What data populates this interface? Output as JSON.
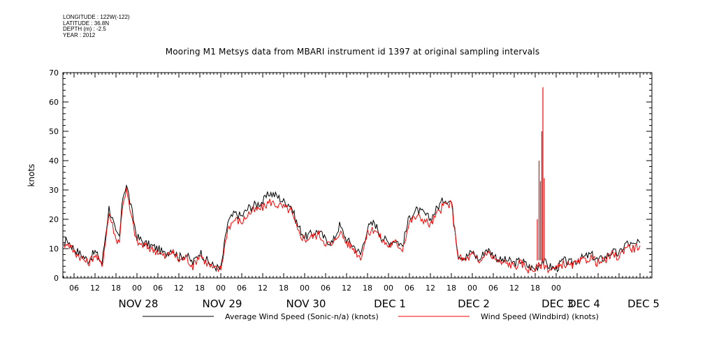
{
  "meta": {
    "longitude": "LONGITUDE : 122W(-122)",
    "latitude": "LATITUDE : 36.8N",
    "depth": "DEPTH (m) : -2.5",
    "year": "YEAR : 2012"
  },
  "chart_data": {
    "type": "line",
    "title": "Mooring M1 Metsys data from MBARI instrument id 1397 at original sampling intervals",
    "ylabel": "knots",
    "xlabel": "",
    "ylim": [
      0,
      70
    ],
    "y_ticks": [
      0,
      10,
      20,
      30,
      40,
      50,
      60,
      70
    ],
    "x_range_hours": [
      0,
      142
    ],
    "hour_ticks": [
      {
        "h": 6,
        "label": "06"
      },
      {
        "h": 12,
        "label": "12"
      },
      {
        "h": 18,
        "label": "18"
      },
      {
        "h": 24,
        "label": "00"
      },
      {
        "h": 30,
        "label": "06"
      },
      {
        "h": 36,
        "label": "12"
      },
      {
        "h": 42,
        "label": "18"
      },
      {
        "h": 48,
        "label": "00"
      },
      {
        "h": 54,
        "label": "06"
      },
      {
        "h": 60,
        "label": "12"
      },
      {
        "h": 66,
        "label": "18"
      },
      {
        "h": 72,
        "label": "00"
      },
      {
        "h": 78,
        "label": "06"
      },
      {
        "h": 84,
        "label": "12"
      },
      {
        "h": 90,
        "label": "18"
      },
      {
        "h": 96,
        "label": "00"
      },
      {
        "h": 102,
        "label": "06"
      },
      {
        "h": 108,
        "label": "12"
      },
      {
        "h": 114,
        "label": "18"
      },
      {
        "h": 120,
        "label": "00"
      },
      {
        "h": 126,
        "label": "06"
      },
      {
        "h": 132,
        "label": "12"
      },
      {
        "h": 138,
        "label": "18"
      },
      {
        "h": 144,
        "label": "00"
      }
    ],
    "day_labels": [
      {
        "h": 12,
        "label": "NOV 28"
      },
      {
        "h": 36,
        "label": "NOV 29"
      },
      {
        "h": 60,
        "label": "NOV 30"
      },
      {
        "h": 84,
        "label": "DEC  1"
      },
      {
        "h": 108,
        "label": "DEC  2"
      },
      {
        "h": 132,
        "label": "DEC  3"
      },
      {
        "h": 156,
        "label": "DEC  4"
      },
      {
        "h": 168,
        "label": "DEC 5"
      }
    ],
    "grid": false,
    "legend_position": "bottom",
    "series": [
      {
        "name": "Average Wind Speed (Sonic-n/a) (knots)",
        "color": "#000000",
        "x": [
          0,
          1,
          2,
          3,
          4,
          6,
          8,
          10,
          12,
          14,
          16,
          17,
          18,
          19,
          20,
          21,
          22,
          24,
          26,
          28,
          30,
          32,
          34,
          36,
          38,
          40,
          42,
          44,
          46,
          48,
          50,
          52,
          54,
          56,
          58,
          60,
          62,
          64,
          66,
          68,
          70,
          72,
          74,
          76,
          78,
          80,
          82,
          84,
          86,
          88,
          90,
          92,
          94,
          96,
          98,
          100,
          102,
          104,
          106,
          108,
          110,
          112,
          114,
          116,
          118,
          120,
          122,
          124,
          126,
          128,
          130,
          132,
          134,
          136,
          138,
          140,
          142,
          144,
          146,
          148,
          150,
          152,
          154,
          156,
          158,
          160,
          162,
          164,
          166,
          168
        ],
        "y": [
          15,
          11,
          9,
          12,
          13,
          10,
          8,
          6,
          9,
          5,
          24,
          20,
          15,
          14,
          28,
          32,
          26,
          14,
          12,
          11,
          10,
          8,
          10,
          7,
          8,
          5,
          9,
          6,
          4,
          3,
          19,
          22,
          21,
          24,
          25,
          26,
          29,
          28,
          26,
          25,
          18,
          14,
          15,
          16,
          13,
          12,
          18,
          13,
          11,
          8,
          17,
          19,
          14,
          12,
          13,
          11,
          21,
          23,
          22,
          20,
          24,
          27,
          26,
          8,
          7,
          9,
          6,
          10,
          8,
          6,
          6,
          5,
          6,
          4,
          3,
          6,
          4,
          3,
          6,
          5,
          6,
          7,
          8,
          6,
          7,
          9,
          8,
          12,
          11,
          12
        ]
      },
      {
        "name": "Wind Speed (Windbird) (knots)",
        "color": "#ff0000",
        "x": [
          0,
          1,
          2,
          3,
          4,
          6,
          8,
          10,
          12,
          14,
          16,
          17,
          18,
          19,
          20,
          21,
          22,
          24,
          26,
          28,
          30,
          32,
          34,
          36,
          38,
          40,
          42,
          44,
          46,
          48,
          50,
          52,
          54,
          56,
          58,
          60,
          62,
          64,
          66,
          68,
          70,
          72,
          74,
          76,
          78,
          80,
          82,
          84,
          86,
          88,
          90,
          92,
          94,
          96,
          98,
          100,
          102,
          104,
          106,
          108,
          110,
          112,
          114,
          116,
          118,
          120,
          122,
          124,
          126,
          128,
          130,
          132,
          134,
          136,
          138,
          140,
          142,
          144,
          146,
          148,
          150,
          152,
          154,
          156,
          158,
          160,
          162,
          164,
          166,
          168
        ],
        "y": [
          14,
          9,
          8,
          11,
          12,
          9,
          7,
          5,
          8,
          4,
          22,
          18,
          13,
          13,
          26,
          30,
          23,
          12,
          11,
          10,
          9,
          7,
          9,
          6,
          7,
          4,
          8,
          5,
          3,
          3,
          17,
          20,
          19,
          22,
          23,
          24,
          26,
          25,
          24,
          23,
          16,
          13,
          14,
          15,
          12,
          11,
          16,
          12,
          10,
          7,
          15,
          17,
          13,
          11,
          12,
          10,
          19,
          21,
          20,
          18,
          22,
          25,
          25,
          7,
          6,
          8,
          5,
          9,
          7,
          5,
          5,
          4,
          5,
          3,
          3,
          5,
          3,
          3,
          5,
          4,
          5,
          6,
          7,
          5,
          6,
          8,
          7,
          11,
          10,
          11
        ],
        "spikes": [
          {
            "x": 126.2,
            "y": 20
          },
          {
            "x": 126.7,
            "y": 40
          },
          {
            "x": 127.1,
            "y": 33
          },
          {
            "x": 127.5,
            "y": 50
          },
          {
            "x": 127.8,
            "y": 65
          },
          {
            "x": 128.2,
            "y": 34
          }
        ]
      }
    ]
  }
}
